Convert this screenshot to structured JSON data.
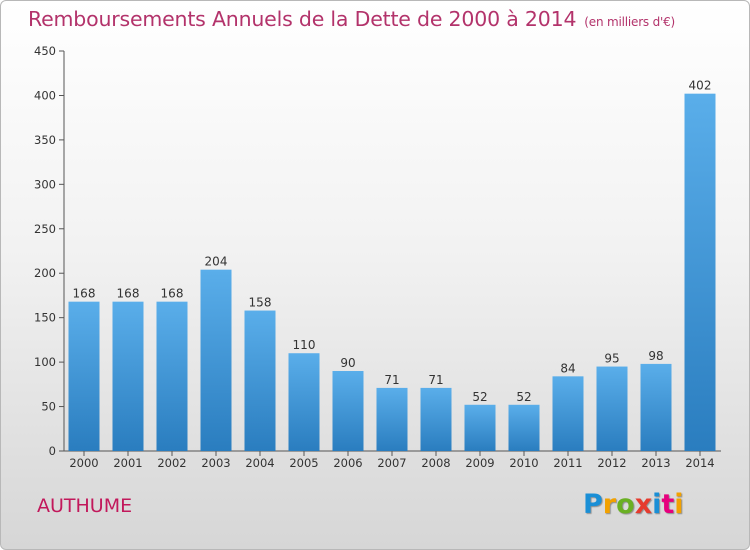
{
  "title": {
    "main": "Remboursements Annuels de la Dette de 2000 à 2014",
    "unit": "(en milliers d'€)"
  },
  "commune": "AUTHUME",
  "logo": {
    "text": "Proxiti",
    "colors": [
      "#1a8fd6",
      "#f2a100",
      "#6ab023",
      "#e63b2e",
      "#1a8fd6",
      "#e6007e",
      "#f2a100"
    ]
  },
  "colors": {
    "bar_top": "#5aaeea",
    "bar_bottom": "#2a7dbf",
    "title": "#b3336b"
  },
  "chart_data": {
    "type": "bar",
    "categories": [
      "2000",
      "2001",
      "2002",
      "2003",
      "2004",
      "2005",
      "2006",
      "2007",
      "2008",
      "2009",
      "2010",
      "2011",
      "2012",
      "2013",
      "2014"
    ],
    "values": [
      168,
      168,
      168,
      204,
      158,
      110,
      90,
      71,
      71,
      52,
      52,
      84,
      95,
      98,
      402
    ],
    "ylim": [
      0,
      450
    ],
    "yticks": [
      0,
      50,
      100,
      150,
      200,
      250,
      300,
      350,
      400,
      450
    ],
    "grid": false,
    "data_labels": true
  }
}
